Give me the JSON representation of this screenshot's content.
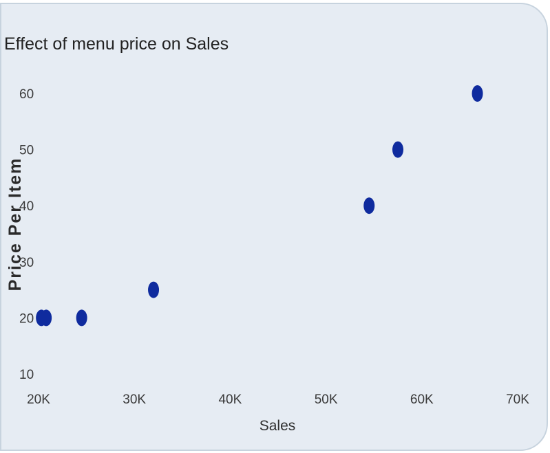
{
  "chart_data": {
    "type": "scatter",
    "title": "Effect of menu price on Sales",
    "xlabel": "Sales",
    "ylabel": "Price Per Item",
    "xlim": [
      20000,
      70000
    ],
    "ylim": [
      10,
      65
    ],
    "x_ticks": [
      {
        "value": 20000,
        "label": "20K"
      },
      {
        "value": 30000,
        "label": "30K"
      },
      {
        "value": 40000,
        "label": "40K"
      },
      {
        "value": 50000,
        "label": "50K"
      },
      {
        "value": 60000,
        "label": "60K"
      },
      {
        "value": 70000,
        "label": "70K"
      }
    ],
    "y_ticks": [
      {
        "value": 10,
        "label": "10"
      },
      {
        "value": 20,
        "label": "20"
      },
      {
        "value": 30,
        "label": "30"
      },
      {
        "value": 40,
        "label": "40"
      },
      {
        "value": 50,
        "label": "50"
      },
      {
        "value": 60,
        "label": "60"
      }
    ],
    "grid": false,
    "legend": "none",
    "points": [
      {
        "x": 20300,
        "y": 20
      },
      {
        "x": 20800,
        "y": 20
      },
      {
        "x": 24500,
        "y": 20
      },
      {
        "x": 32000,
        "y": 25
      },
      {
        "x": 54500,
        "y": 40
      },
      {
        "x": 57500,
        "y": 50
      },
      {
        "x": 65800,
        "y": 60
      }
    ],
    "point_color": "#0f2b9e"
  }
}
